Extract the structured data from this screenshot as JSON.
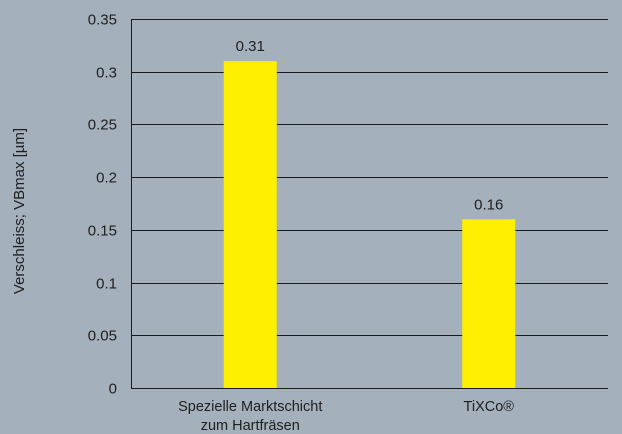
{
  "chart_data": {
    "type": "bar",
    "title": "",
    "ylabel": "Verschleiss; VBmax [µm]",
    "xlabel": "",
    "categories": [
      [
        "Spezielle Marktschicht",
        "zum Hartfräsen"
      ],
      [
        "TiXCo®"
      ]
    ],
    "values": [
      0.31,
      0.16
    ],
    "data_labels": [
      "0.31",
      "0.16"
    ],
    "ylim": [
      0,
      0.35
    ],
    "yticks": [
      0,
      0.05,
      0.1,
      0.15,
      0.2,
      0.25,
      0.3,
      0.35
    ],
    "ytick_labels": [
      "0",
      "0.05",
      "0.1",
      "0.15",
      "0.2",
      "0.25",
      "0.3",
      "0.35"
    ],
    "grid": true,
    "legend": "none",
    "colors": {
      "background": "#a4b0bb",
      "bar": "#ffef00",
      "gridline": "#1a1a1a",
      "text": "#1f1f1f"
    }
  }
}
